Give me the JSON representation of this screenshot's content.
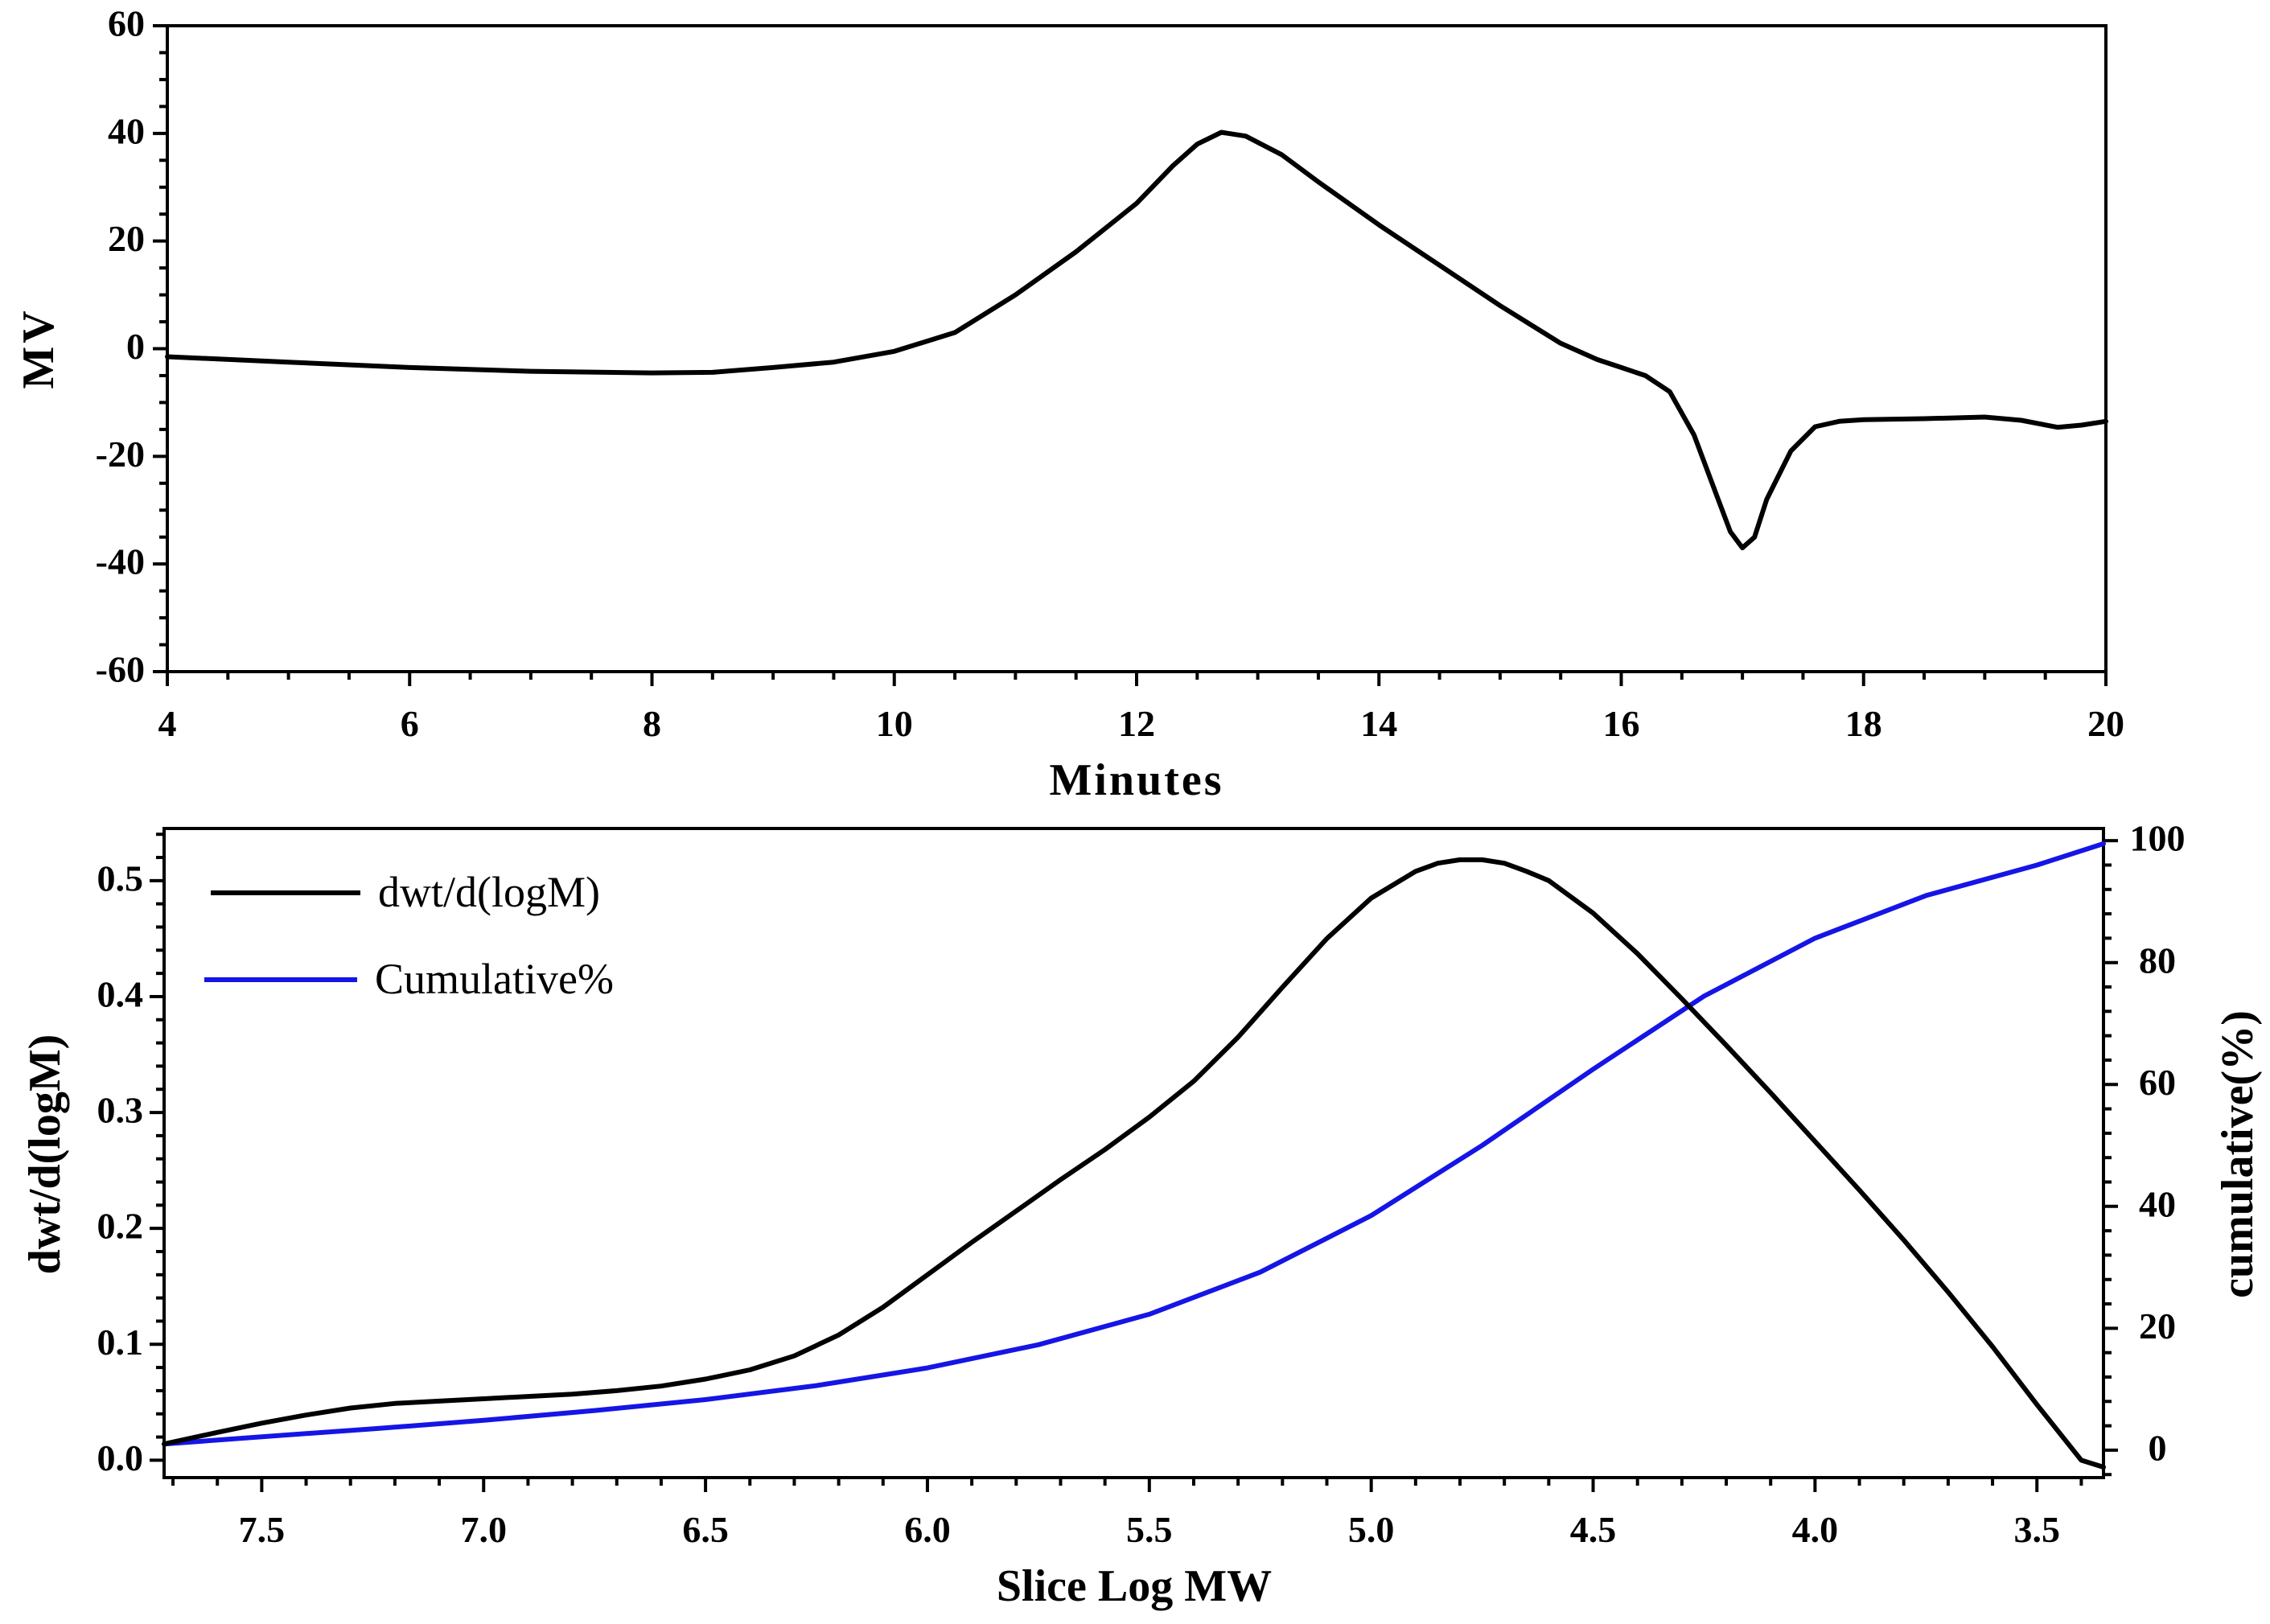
{
  "chart_data": [
    {
      "type": "line",
      "xlabel": "Minutes",
      "ylabel": "MV",
      "xlim": [
        4,
        20
      ],
      "ylim": [
        -60,
        60
      ],
      "x_ticks": [
        "4",
        "6",
        "8",
        "10",
        "12",
        "14",
        "16",
        "18",
        "20"
      ],
      "y_ticks": [
        "60",
        "40",
        "20",
        "0",
        "-20",
        "-40",
        "-60"
      ],
      "series": [
        {
          "name": "MV",
          "color": "#000000",
          "x": [
            4.0,
            5.0,
            6.0,
            7.0,
            8.0,
            8.5,
            9.0,
            9.5,
            10.0,
            10.5,
            11.0,
            11.5,
            12.0,
            12.3,
            12.5,
            12.7,
            12.9,
            13.2,
            13.5,
            14.0,
            14.5,
            15.0,
            15.5,
            15.8,
            16.0,
            16.2,
            16.4,
            16.6,
            16.8,
            16.9,
            17.0,
            17.1,
            17.2,
            17.4,
            17.6,
            17.8,
            18.0,
            18.5,
            19.0,
            19.3,
            19.6,
            19.8,
            20.0
          ],
          "y": [
            -1.5,
            -2.5,
            -3.5,
            -4.2,
            -4.5,
            -4.4,
            -3.5,
            -2.5,
            -0.5,
            3.0,
            10.0,
            18.0,
            27.0,
            34.0,
            38.0,
            40.2,
            39.5,
            36.0,
            31.0,
            23.0,
            15.5,
            8.0,
            1.0,
            -2.0,
            -3.5,
            -5.0,
            -8.0,
            -16.0,
            -28.0,
            -34.0,
            -37.0,
            -35.0,
            -28.0,
            -19.0,
            -14.5,
            -13.5,
            -13.2,
            -13.0,
            -12.7,
            -13.3,
            -14.6,
            -14.2,
            -13.5
          ]
        }
      ]
    },
    {
      "type": "line",
      "xlabel": "Slice Log MW",
      "ylabel": "dwt/d(logM)",
      "y2label": "cumulative(%)",
      "xlim": [
        7.72,
        3.35
      ],
      "ylim": [
        -0.015,
        0.545
      ],
      "y2lim": [
        -4.5,
        102
      ],
      "x_ticks": [
        "7.5",
        "7.0",
        "6.5",
        "6.0",
        "5.5",
        "5.0",
        "4.5",
        "4.0",
        "3.5"
      ],
      "y_ticks": [
        "0.0",
        "0.1",
        "0.2",
        "0.3",
        "0.4",
        "0.5"
      ],
      "y2_ticks": [
        "0",
        "20",
        "40",
        "60",
        "80",
        "100"
      ],
      "legend": {
        "position": "top-left",
        "entries": [
          "dwt/d(logM)",
          "Cumulative%"
        ]
      },
      "series": [
        {
          "name": "dwt/d(logM)",
          "axis": "left",
          "color": "#000000",
          "x": [
            7.72,
            7.6,
            7.5,
            7.4,
            7.3,
            7.2,
            7.1,
            7.0,
            6.9,
            6.8,
            6.7,
            6.6,
            6.5,
            6.4,
            6.3,
            6.2,
            6.1,
            6.0,
            5.9,
            5.8,
            5.7,
            5.6,
            5.5,
            5.4,
            5.3,
            5.2,
            5.1,
            5.0,
            4.9,
            4.85,
            4.8,
            4.75,
            4.7,
            4.65,
            4.6,
            4.5,
            4.4,
            4.3,
            4.2,
            4.1,
            4.0,
            3.9,
            3.8,
            3.7,
            3.6,
            3.5,
            3.4,
            3.35
          ],
          "y": [
            0.014,
            0.024,
            0.032,
            0.039,
            0.045,
            0.049,
            0.051,
            0.053,
            0.055,
            0.057,
            0.06,
            0.064,
            0.07,
            0.078,
            0.09,
            0.108,
            0.132,
            0.16,
            0.188,
            0.215,
            0.242,
            0.268,
            0.296,
            0.327,
            0.365,
            0.408,
            0.45,
            0.485,
            0.508,
            0.515,
            0.518,
            0.518,
            0.515,
            0.508,
            0.5,
            0.472,
            0.437,
            0.398,
            0.358,
            0.317,
            0.275,
            0.233,
            0.19,
            0.145,
            0.098,
            0.048,
            0.0,
            -0.006
          ]
        },
        {
          "name": "Cumulative%",
          "axis": "right",
          "color": "#1515e6",
          "x": [
            7.72,
            7.5,
            7.25,
            7.0,
            6.75,
            6.5,
            6.25,
            6.0,
            5.75,
            5.5,
            5.25,
            5.0,
            4.75,
            4.5,
            4.25,
            4.0,
            3.75,
            3.5,
            3.35
          ],
          "y": [
            1.0,
            2.2,
            3.5,
            4.9,
            6.5,
            8.3,
            10.6,
            13.5,
            17.3,
            22.3,
            29.2,
            38.5,
            50.0,
            62.5,
            74.5,
            84.0,
            91.0,
            96.0,
            99.5
          ]
        }
      ]
    }
  ]
}
